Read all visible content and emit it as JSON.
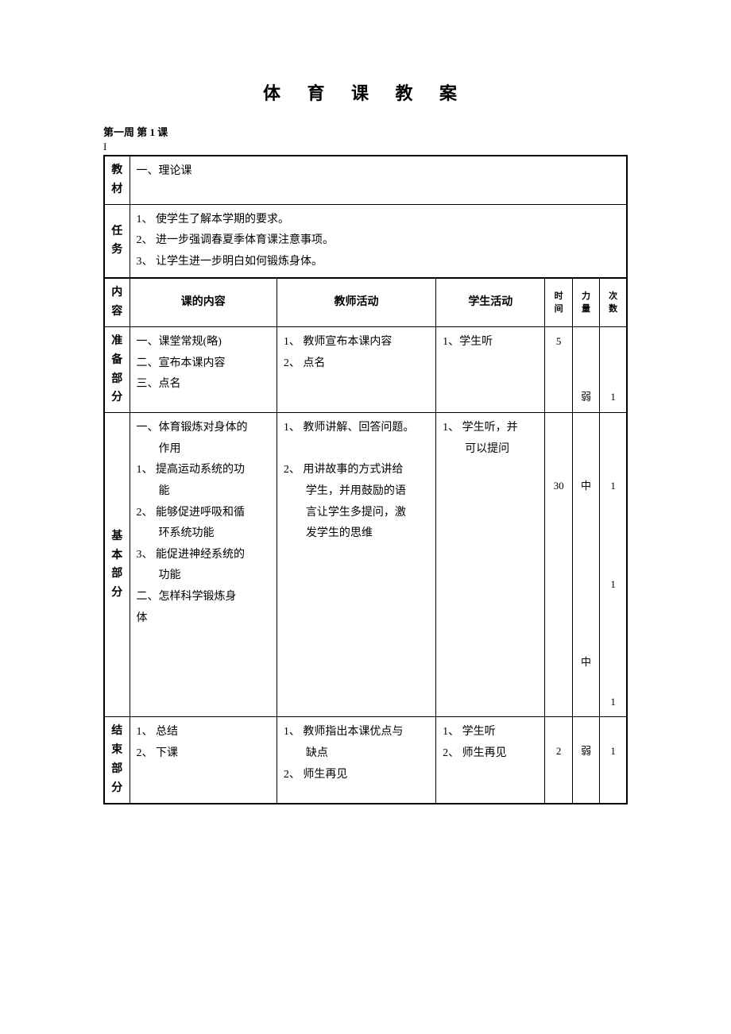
{
  "title": "体 育 课 教 案",
  "subtitle": "第一周  第 1 课",
  "marker": "I",
  "rows": {
    "material": {
      "label": "教材",
      "content": "一、理论课"
    },
    "task": {
      "label": "任务",
      "content": "1、 使学生了解本学期的要求。\n2、 进一步强调春夏季体育课注意事项。\n3、 让学生进一步明白如何锻炼身体。"
    },
    "header": {
      "label": "内容",
      "c1": "课的内容",
      "c2": "教师活动",
      "c3": "学生活动",
      "c4": "时间",
      "c5": "力量",
      "c6": "次数"
    },
    "prep": {
      "label": "准备部分",
      "content": "一、课堂常规(略)\n二、宣布本课内容\n三、点名",
      "teacher": "1、 教师宣布本课内容\n2、 点名",
      "student": "1、学生听",
      "time": "5",
      "intensity": "弱",
      "count": "1"
    },
    "main": {
      "label": "基本部分",
      "content": "一、体育锻炼对身体的\n　　作用\n1、 提高运动系统的功\n　　能\n2、 能够促进呼吸和循\n　　环系统功能\n3、 能促进神经系统的\n　　功能\n二、怎样科学锻炼身\n体",
      "teacher": "1、 教师讲解、回答问题。\n\n2、 用讲故事的方式讲给\n　　学生，并用鼓励的语\n　　言让学生多提问，激\n　　发学生的思维",
      "student": "1、 学生听，并\n　　可以提问",
      "time": "\n\n\n30",
      "intensity": "\n\n\n中\n\n\n\n\n\n\n\n\n中",
      "count": "\n\n\n1\n\n\n\n\n1\n\n\n\n\n\n1"
    },
    "end": {
      "label": "结束部分",
      "content": "1、 总结\n2、 下课",
      "teacher": "1、 教师指出本课优点与\n　　缺点\n2、 师生再见",
      "student": "1、 学生听\n2、 师生再见",
      "time": "\n2",
      "intensity": "\n弱",
      "count": "\n1"
    }
  }
}
